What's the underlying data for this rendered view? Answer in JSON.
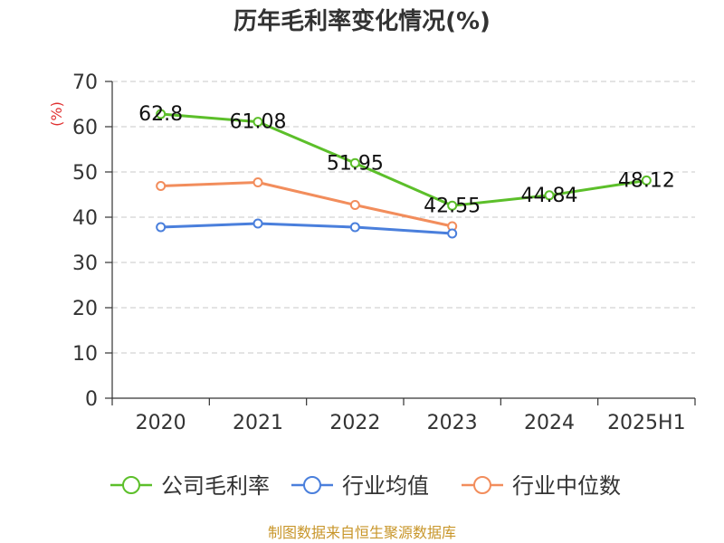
{
  "chart_data": {
    "type": "line",
    "title": "历年毛利率变化情况(%)",
    "ylabel": "(%)",
    "xlabel": "",
    "categories": [
      "2020",
      "2021",
      "2022",
      "2023",
      "2024",
      "2025H1"
    ],
    "ylim": [
      0,
      70
    ],
    "yticks": [
      0,
      10,
      20,
      30,
      40,
      50,
      60,
      70
    ],
    "grid": true,
    "legend_position": "bottom",
    "series": [
      {
        "name": "公司毛利率",
        "color": "#5cbf2a",
        "values": [
          62.8,
          61.08,
          51.95,
          42.55,
          44.84,
          48.12
        ],
        "labels": [
          "62.8",
          "61.08",
          "51.95",
          "42.55",
          "44.84",
          "48.12"
        ]
      },
      {
        "name": "行业均值",
        "color": "#4a7fdc",
        "values": [
          37.8,
          38.6,
          37.8,
          36.4,
          null,
          null
        ]
      },
      {
        "name": "行业中位数",
        "color": "#f28d5c",
        "values": [
          46.9,
          47.7,
          42.7,
          38.0,
          null,
          null
        ]
      }
    ]
  },
  "source": "制图数据来自恒生聚源数据库"
}
